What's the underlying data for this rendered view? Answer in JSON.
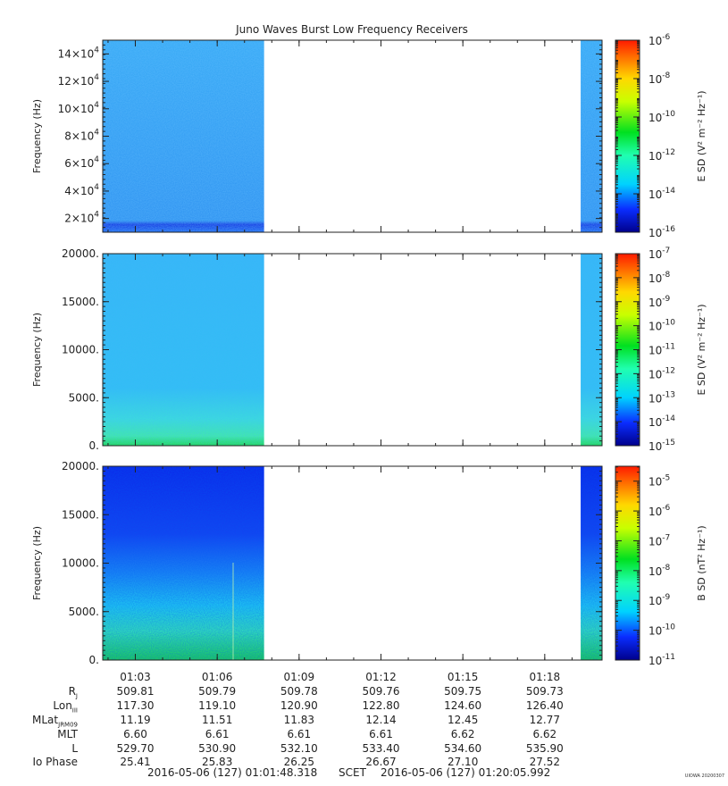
{
  "chart_data": {
    "type": "heatmap",
    "title": "Juno Waves Burst Low Frequency Receivers",
    "time_ticks": [
      "01:03",
      "01:06",
      "01:09",
      "01:12",
      "01:15",
      "01:18"
    ],
    "data_intervals": [
      {
        "start": "01:01:48",
        "end": "01:07:43"
      },
      {
        "start": "01:19:19",
        "end": "01:20:05"
      }
    ],
    "panels": [
      {
        "ylabel": "Frequency (Hz)",
        "ylim": [
          10000,
          150000
        ],
        "yticks": [
          {
            "mant": "2×10",
            "exp": "4"
          },
          {
            "mant": "4×10",
            "exp": "4"
          },
          {
            "mant": "6×10",
            "exp": "4"
          },
          {
            "mant": "8×10",
            "exp": "4"
          },
          {
            "mant": "10×10",
            "exp": "4"
          },
          {
            "mant": "12×10",
            "exp": "4"
          },
          {
            "mant": "14×10",
            "exp": "4"
          }
        ],
        "colorbar": {
          "label": "E SD (V² m⁻² Hz⁻¹)",
          "scale": "log",
          "range_exp": [
            -16,
            -6
          ],
          "ticks": [
            "-6",
            "-8",
            "-10",
            "-12",
            "-14",
            "-16"
          ]
        }
      },
      {
        "ylabel": "Frequency (Hz)",
        "ylim": [
          0,
          20000
        ],
        "yticks": [
          "0.",
          "5000.",
          "10000.",
          "15000.",
          "20000."
        ],
        "colorbar": {
          "label": "E SD (V² m⁻² Hz⁻¹)",
          "scale": "log",
          "range_exp": [
            -15,
            -7
          ],
          "ticks": [
            "-7",
            "-8",
            "-9",
            "-10",
            "-11",
            "-12",
            "-13",
            "-14",
            "-15"
          ]
        }
      },
      {
        "ylabel": "Frequency (Hz)",
        "ylim": [
          0,
          20000
        ],
        "yticks": [
          "0.",
          "5000.",
          "10000.",
          "15000.",
          "20000."
        ],
        "colorbar": {
          "label": "B SD (nT² Hz⁻¹)",
          "scale": "log",
          "range_exp": [
            -11,
            -4.5
          ],
          "ticks": [
            "-5",
            "-6",
            "-7",
            "-8",
            "-9",
            "-10",
            "-11"
          ]
        }
      }
    ]
  },
  "ephemeris": {
    "rows": [
      {
        "base": "R",
        "sub": "J",
        "values": [
          "509.81",
          "509.79",
          "509.78",
          "509.76",
          "509.75",
          "509.73"
        ]
      },
      {
        "base": "Lon",
        "sub": "III",
        "values": [
          "117.30",
          "119.10",
          "120.90",
          "122.80",
          "124.60",
          "126.40"
        ]
      },
      {
        "base": "MLat",
        "sub": "JRM09",
        "values": [
          "11.19",
          "11.51",
          "11.83",
          "12.14",
          "12.45",
          "12.77"
        ]
      },
      {
        "base": "MLT",
        "sub": "",
        "values": [
          "6.60",
          "6.61",
          "6.61",
          "6.61",
          "6.62",
          "6.62"
        ]
      },
      {
        "base": "L",
        "sub": "",
        "values": [
          "529.70",
          "530.90",
          "532.10",
          "533.40",
          "534.60",
          "535.90"
        ]
      },
      {
        "base": "Io Phase",
        "sub": "",
        "values": [
          "25.41",
          "25.83",
          "26.25",
          "26.67",
          "27.10",
          "27.52"
        ]
      }
    ]
  },
  "footer": {
    "start": "2016-05-06 (127) 01:01:48.318",
    "mid": "SCET",
    "end": "2016-05-06 (127) 01:20:05.992"
  },
  "credit": "UIOWA 20200307"
}
